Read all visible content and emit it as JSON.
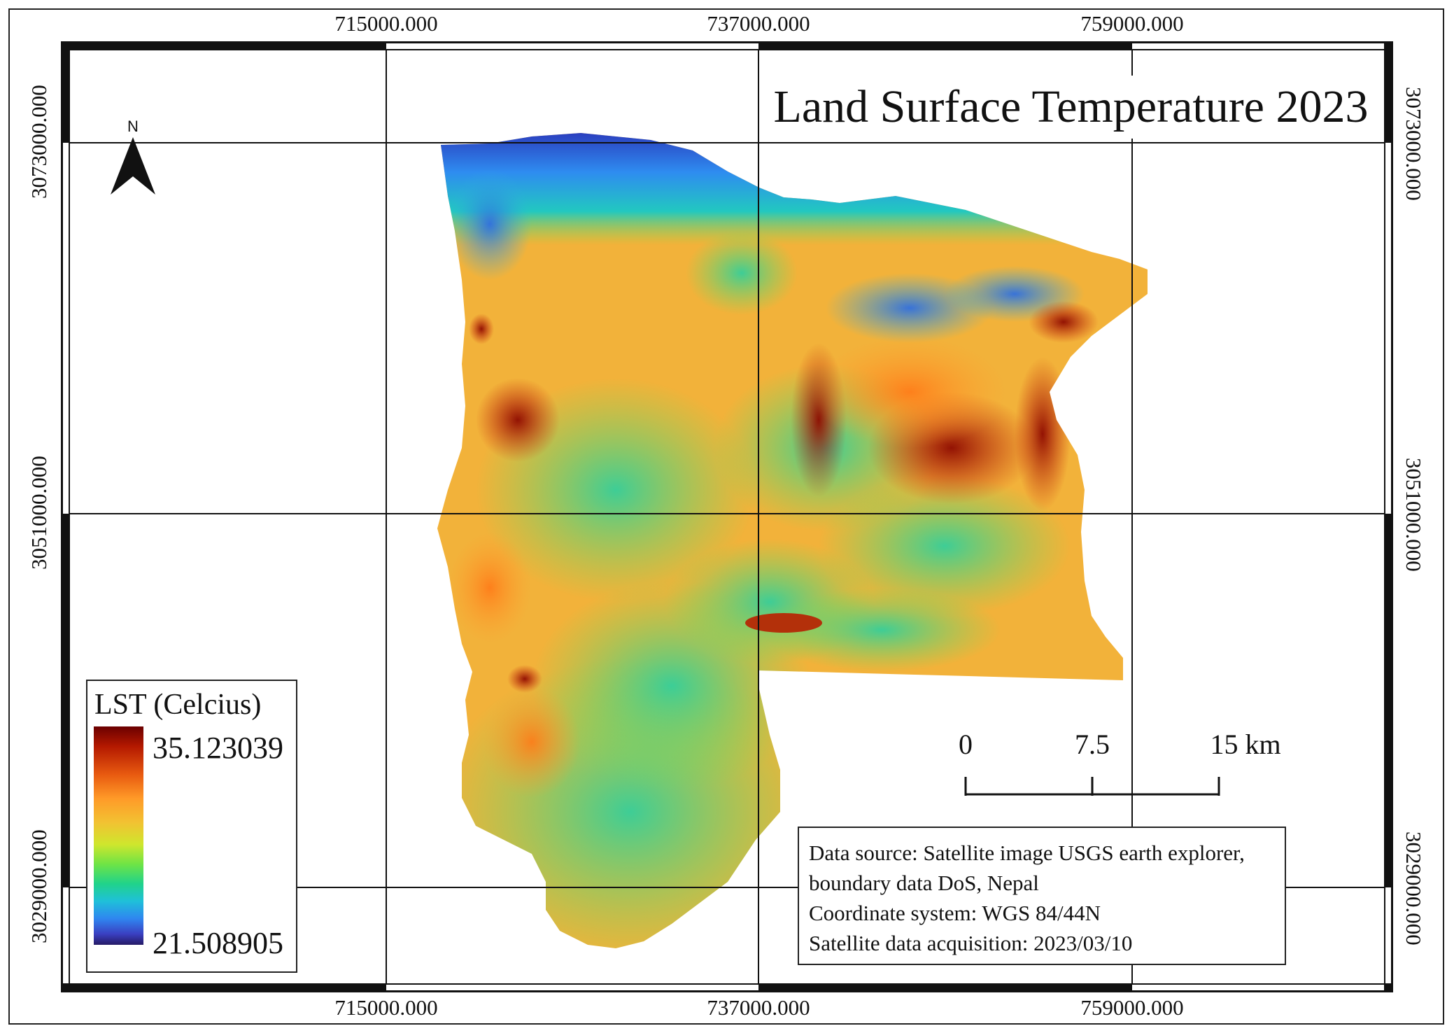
{
  "title": "Land Surface Temperature 2023",
  "coordinates": {
    "x_ticks": [
      "715000.000",
      "737000.000",
      "759000.000"
    ],
    "y_ticks": [
      "3073000.000",
      "3051000.000",
      "3029000.000"
    ]
  },
  "north_arrow": {
    "label": "N",
    "icon": "north-arrow-icon"
  },
  "legend": {
    "title": "LST (Celcius)",
    "max": "35.123039",
    "min": "21.508905",
    "ramp_colors": [
      "#6b0000",
      "#b31800",
      "#e85a10",
      "#ff9a28",
      "#f2c232",
      "#cfe62d",
      "#6fe445",
      "#20d38a",
      "#1fc0d9",
      "#2f86f0",
      "#3a40c2",
      "#261a66"
    ]
  },
  "scalebar": {
    "labels": [
      "0",
      "7.5",
      "15 km"
    ]
  },
  "info": {
    "lines": [
      "Data source: Satellite image USGS earth explorer,",
      "boundary data DoS, Nepal",
      "Coordinate system: WGS 84/44N",
      "Satellite data acquisition: 2023/03/10"
    ]
  }
}
